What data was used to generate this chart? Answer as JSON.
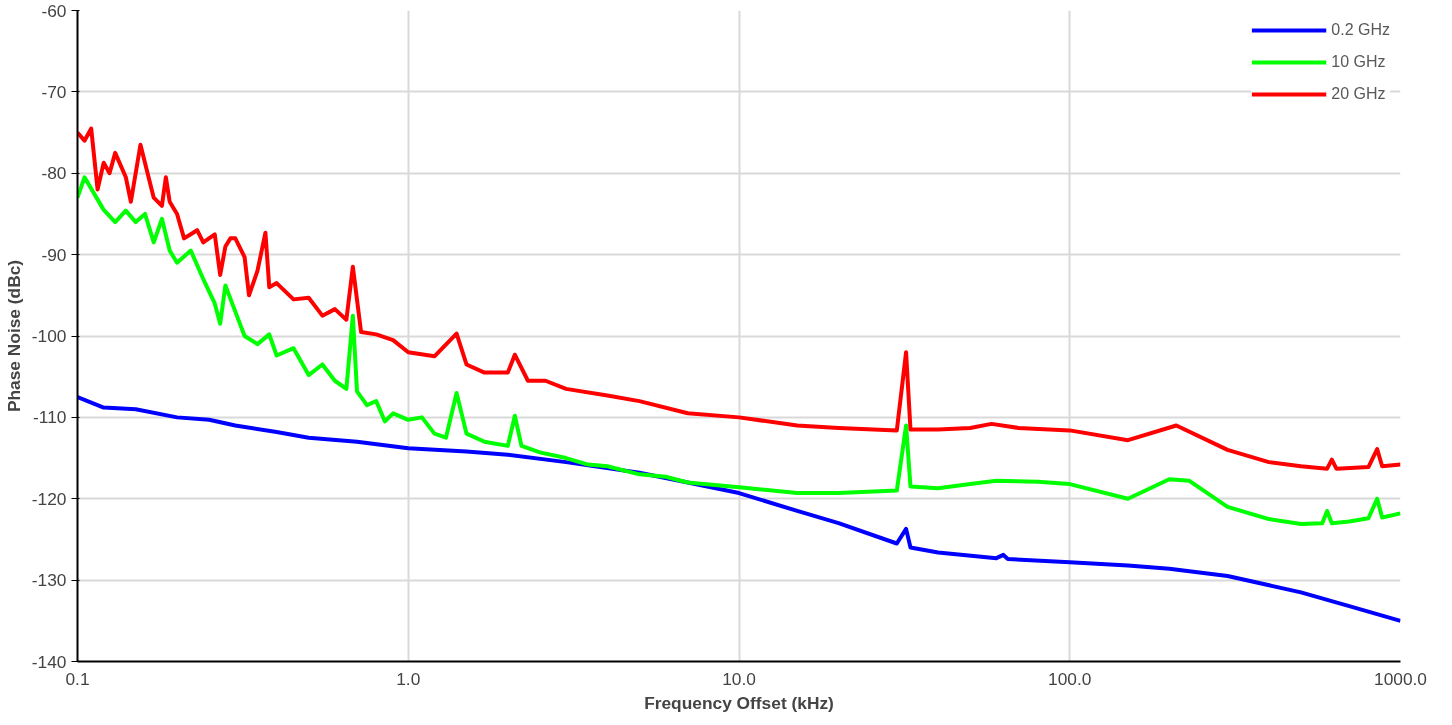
{
  "chart_data": {
    "type": "line",
    "xlabel": "Frequency Offset (kHz)",
    "ylabel": "Phase Noise (dBc)",
    "log": "x",
    "grid": true,
    "legend": "top right",
    "line_style": "solid",
    "marker": "none",
    "xlim": [
      0.1,
      1000
    ],
    "xticks": [
      {
        "value": 0.1,
        "label": "0.1"
      },
      {
        "value": 1,
        "label": "1.0"
      },
      {
        "value": 10,
        "label": "10.0"
      },
      {
        "value": 100,
        "label": "100.0"
      },
      {
        "value": 1000,
        "label": "1000.0"
      }
    ],
    "ylim": [
      -140,
      -60
    ],
    "yticks": [
      -140,
      -130,
      -120,
      -110,
      -100,
      -90,
      -80,
      -70,
      -60
    ],
    "series": [
      {
        "name": "0.2 GHz",
        "color": "#0000ff",
        "x": [
          0.1,
          0.12,
          0.15,
          0.2,
          0.25,
          0.3,
          0.4,
          0.5,
          0.7,
          1.0,
          1.5,
          2,
          3,
          5,
          7,
          10,
          15,
          20,
          30,
          32,
          33,
          40,
          60,
          63,
          65,
          100,
          150,
          200,
          300,
          500,
          700,
          1000
        ],
        "values": [
          -107.5,
          -108.8,
          -109,
          -110,
          -110.3,
          -111,
          -111.8,
          -112.5,
          -113,
          -113.8,
          -114.2,
          -114.6,
          -115.5,
          -116.8,
          -118,
          -119.3,
          -121.5,
          -123,
          -125.5,
          -123.7,
          -126,
          -126.6,
          -127.3,
          -126.9,
          -127.4,
          -127.8,
          -128.2,
          -128.6,
          -129.5,
          -131.5,
          -133.2,
          -135
        ]
      },
      {
        "name": "10 GHz",
        "color": "#00ff00",
        "x": [
          0.1,
          0.105,
          0.12,
          0.13,
          0.14,
          0.15,
          0.16,
          0.17,
          0.18,
          0.19,
          0.2,
          0.22,
          0.24,
          0.26,
          0.27,
          0.28,
          0.3,
          0.32,
          0.35,
          0.38,
          0.4,
          0.45,
          0.5,
          0.55,
          0.6,
          0.65,
          0.68,
          0.7,
          0.75,
          0.8,
          0.85,
          0.9,
          1.0,
          1.1,
          1.2,
          1.3,
          1.4,
          1.5,
          1.7,
          2.0,
          2.1,
          2.2,
          2.5,
          3,
          3.5,
          4,
          5,
          6,
          7,
          10,
          15,
          20,
          30,
          32,
          33,
          40,
          50,
          60,
          80,
          100,
          150,
          200,
          230,
          300,
          400,
          500,
          580,
          600,
          620,
          700,
          800,
          850,
          880,
          1000
        ],
        "values": [
          -83,
          -80.5,
          -84.5,
          -86,
          -84.6,
          -86,
          -85,
          -88.5,
          -85.6,
          -89.5,
          -91,
          -89.5,
          -93,
          -96,
          -98.5,
          -93.8,
          -97,
          -100,
          -101,
          -99.8,
          -102.4,
          -101.5,
          -104.8,
          -103.5,
          -105.5,
          -106.5,
          -97.5,
          -106.8,
          -108.5,
          -108,
          -110.5,
          -109.5,
          -110.3,
          -110,
          -112,
          -112.5,
          -107,
          -112,
          -113,
          -113.5,
          -109.8,
          -113.5,
          -114.3,
          -115,
          -115.8,
          -116,
          -117,
          -117.3,
          -118,
          -118.6,
          -119.3,
          -119.3,
          -119,
          -111,
          -118.5,
          -118.7,
          -118.2,
          -117.8,
          -117.9,
          -118.2,
          -120,
          -117.6,
          -117.8,
          -121,
          -122.5,
          -123.1,
          -123,
          -121.5,
          -123,
          -122.8,
          -122.4,
          -120,
          -122.3,
          -121.8
        ]
      },
      {
        "name": "20 GHz",
        "color": "#ff0000",
        "x": [
          0.1,
          0.105,
          0.11,
          0.115,
          0.12,
          0.125,
          0.13,
          0.14,
          0.145,
          0.155,
          0.17,
          0.18,
          0.185,
          0.19,
          0.2,
          0.21,
          0.22,
          0.23,
          0.24,
          0.26,
          0.27,
          0.28,
          0.29,
          0.3,
          0.32,
          0.33,
          0.35,
          0.37,
          0.38,
          0.4,
          0.45,
          0.5,
          0.55,
          0.6,
          0.65,
          0.68,
          0.72,
          0.8,
          0.9,
          1.0,
          1.2,
          1.4,
          1.5,
          1.7,
          2.0,
          2.1,
          2.3,
          2.6,
          3,
          4,
          5,
          7,
          10,
          15,
          20,
          30,
          32,
          33,
          40,
          50,
          58,
          70,
          100,
          150,
          210,
          300,
          400,
          500,
          600,
          620,
          640,
          800,
          850,
          880,
          1000
        ],
        "values": [
          -75,
          -76,
          -74.5,
          -82,
          -78.7,
          -80,
          -77.5,
          -80.5,
          -83.5,
          -76.5,
          -83,
          -84,
          -80.5,
          -83.5,
          -85,
          -88,
          -87.5,
          -87,
          -88.5,
          -87.5,
          -92.5,
          -89,
          -88,
          -88,
          -90.3,
          -95,
          -92,
          -87.3,
          -94,
          -93.5,
          -95.5,
          -95.3,
          -97.5,
          -96.7,
          -98,
          -91.5,
          -99.5,
          -99.8,
          -100.5,
          -102,
          -102.5,
          -99.7,
          -103.5,
          -104.5,
          -104.5,
          -102.3,
          -105.5,
          -105.5,
          -106.5,
          -107.3,
          -108,
          -109.5,
          -110,
          -111,
          -111.3,
          -111.6,
          -102,
          -111.5,
          -111.5,
          -111.3,
          -110.8,
          -111.3,
          -111.6,
          -112.8,
          -111,
          -114,
          -115.5,
          -116,
          -116.3,
          -115.2,
          -116.3,
          -116.1,
          -113.9,
          -116,
          -115.8
        ]
      }
    ]
  }
}
